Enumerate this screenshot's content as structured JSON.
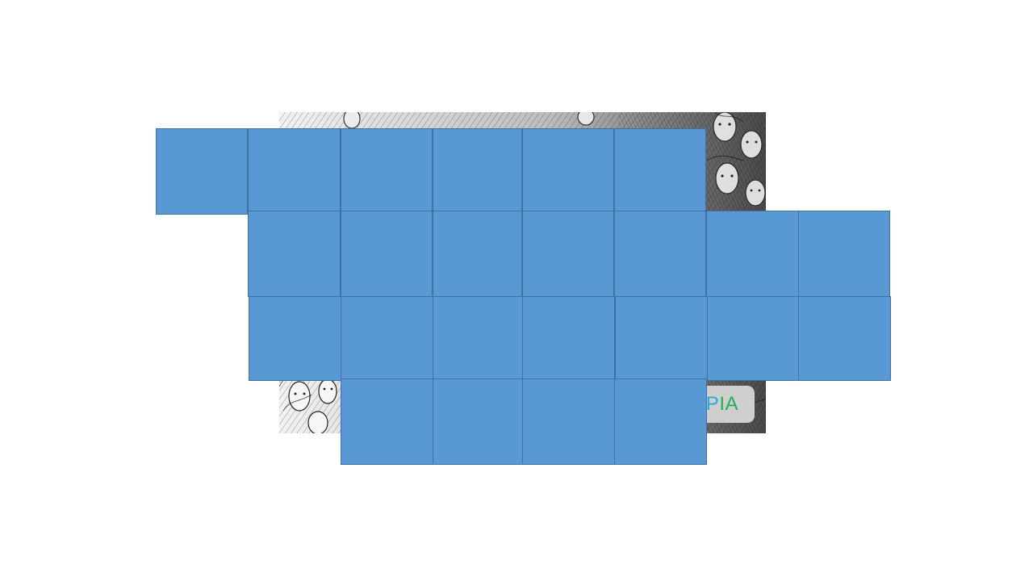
{
  "background": {
    "description_name": "sketch-crowd-illustration",
    "tone": "#444444"
  },
  "logo": {
    "letters": [
      "P",
      "I",
      "A"
    ]
  },
  "tiles": {
    "fill": "#5898d4",
    "border": "#41719c",
    "rows": [
      {
        "count": 6
      },
      {
        "count": 7
      },
      {
        "count": 7
      },
      {
        "count": 4
      }
    ]
  }
}
